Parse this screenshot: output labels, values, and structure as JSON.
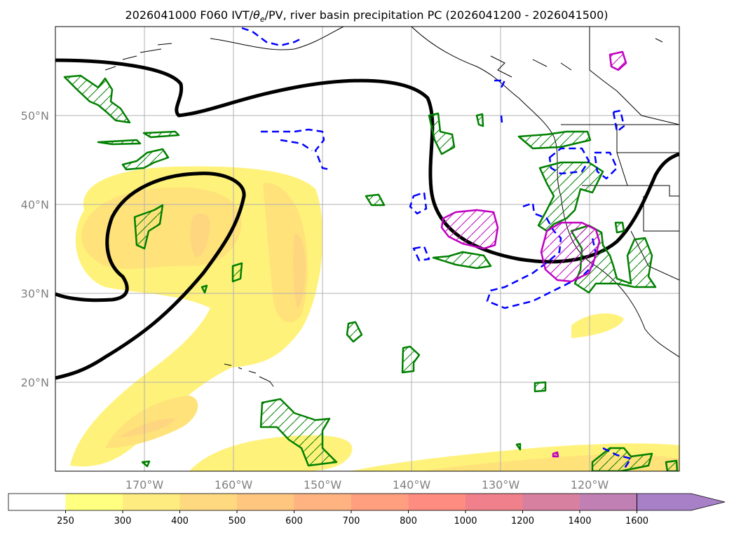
{
  "title": {
    "run": "2026041000",
    "forecast_hour": "F060",
    "fields_prefix": "IVT/",
    "theta_symbol": "θ",
    "theta_subscript": "e",
    "fields_suffix": "/PV, river basin precipitation PC (2026041200 - 2026041500)"
  },
  "map": {
    "lat_labels": [
      "50°N",
      "40°N",
      "30°N",
      "20°N"
    ],
    "lat_values": [
      50,
      40,
      30,
      20
    ],
    "lon_labels": [
      "170°W",
      "160°W",
      "150°W",
      "140°W",
      "130°W",
      "120°W"
    ],
    "lon_values": [
      -170,
      -160,
      -150,
      -140,
      -130,
      -120
    ],
    "extent": {
      "lon_min": -180,
      "lon_max": -110,
      "lat_min": 10,
      "lat_max": 60
    }
  },
  "colorbar": {
    "units_note": "IVT",
    "levels": [
      "250",
      "300",
      "400",
      "500",
      "600",
      "700",
      "800",
      "1000",
      "1200",
      "1400",
      "1600"
    ],
    "colors": [
      "#ffff80",
      "#ffec80",
      "#ffd980",
      "#ffc680",
      "#ffb380",
      "#ff9f80",
      "#ff8c80",
      "#f0808c",
      "#d880a0",
      "#c080b4",
      "#a880c8"
    ],
    "extend": "max"
  },
  "colors": {
    "ivt_light": "#fff27a",
    "ivt_mid": "#ffe070",
    "ivt_core": "#ffd070",
    "pv_contour": "#000000",
    "theta_e_contour": "#008000",
    "negative_contour": "#0000ff",
    "magenta_contour": "#c000c0",
    "coast": "#000000",
    "grid": "#b0b0b0"
  }
}
